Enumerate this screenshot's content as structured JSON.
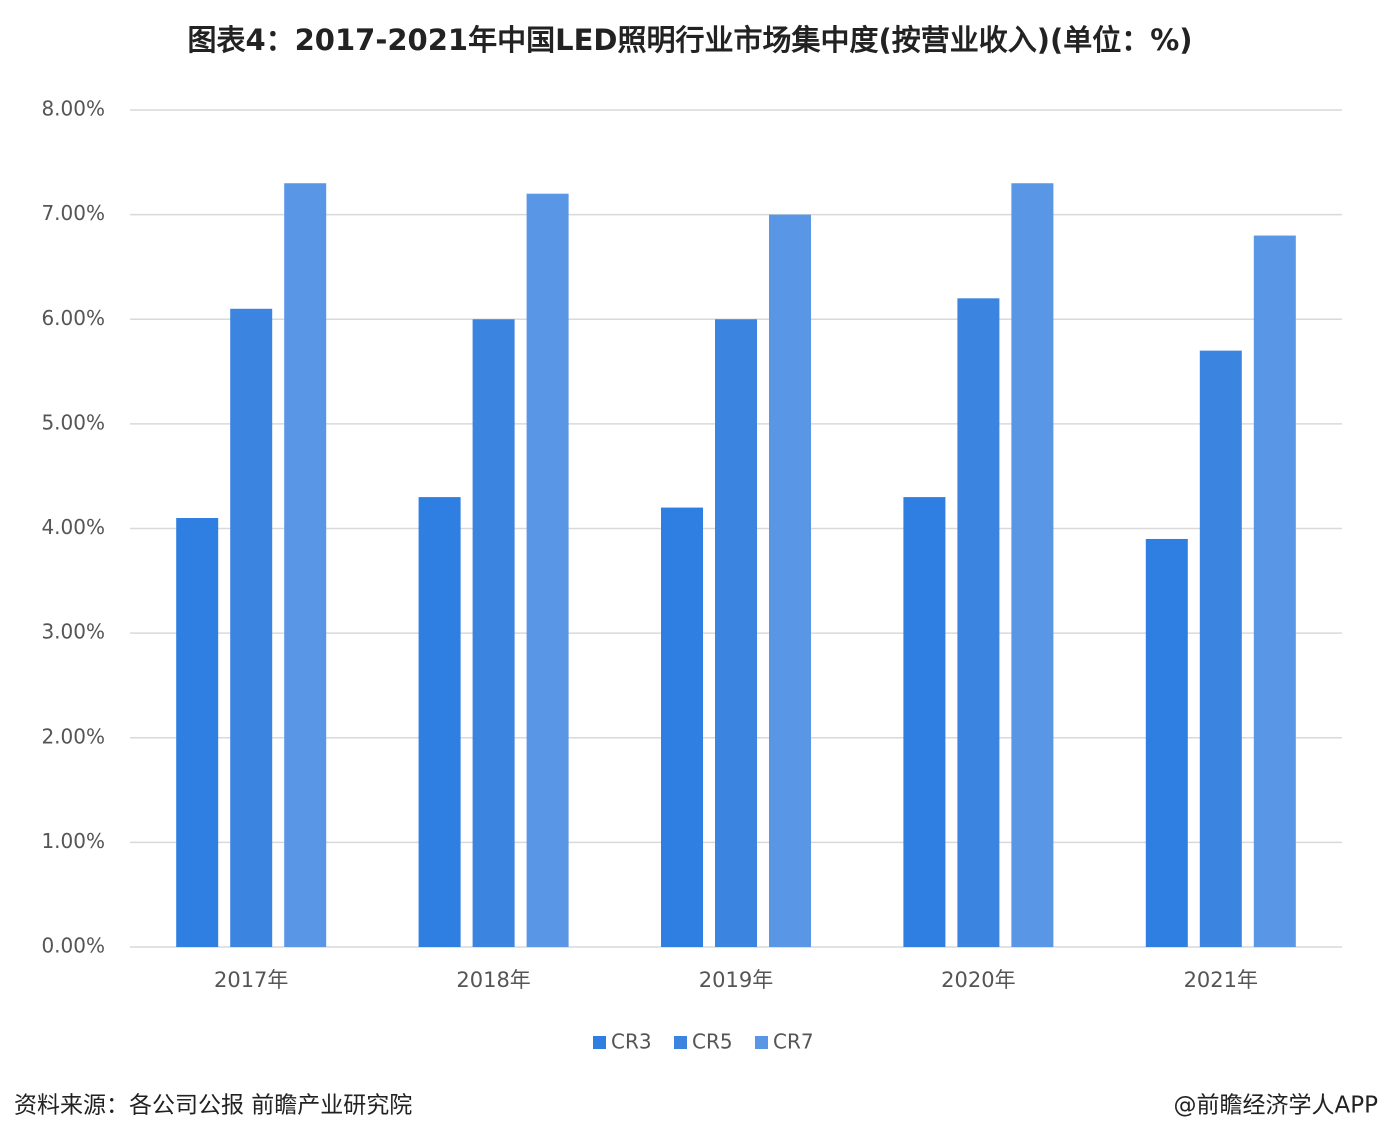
{
  "chart_data": {
    "type": "bar",
    "title": "图表4：2017-2021年中国LED照明行业市场集中度(按营业收入)(单位：%)",
    "categories": [
      "2017年",
      "2018年",
      "2019年",
      "2020年",
      "2021年"
    ],
    "series": [
      {
        "name": "CR3",
        "color": "#2f7ee2",
        "values": [
          4.1,
          4.3,
          4.2,
          4.3,
          3.9
        ]
      },
      {
        "name": "CR5",
        "color": "#3b84e0",
        "values": [
          6.1,
          6.0,
          6.0,
          6.2,
          5.7
        ]
      },
      {
        "name": "CR7",
        "color": "#5a96e6",
        "values": [
          7.3,
          7.2,
          7.0,
          7.3,
          6.8
        ]
      }
    ],
    "ylim": [
      0,
      8
    ],
    "yticks": [
      {
        "value": 0,
        "label": "0.00%"
      },
      {
        "value": 1,
        "label": "1.00%"
      },
      {
        "value": 2,
        "label": "2.00%"
      },
      {
        "value": 3,
        "label": "3.00%"
      },
      {
        "value": 4,
        "label": "4.00%"
      },
      {
        "value": 5,
        "label": "5.00%"
      },
      {
        "value": 6,
        "label": "6.00%"
      },
      {
        "value": 7,
        "label": "7.00%"
      },
      {
        "value": 8,
        "label": "8.00%"
      }
    ],
    "grid": true,
    "legend": "bottom",
    "source": "资料来源：各公司公报 前瞻产业研究院",
    "credit": "@前瞻经济学人APP"
  }
}
